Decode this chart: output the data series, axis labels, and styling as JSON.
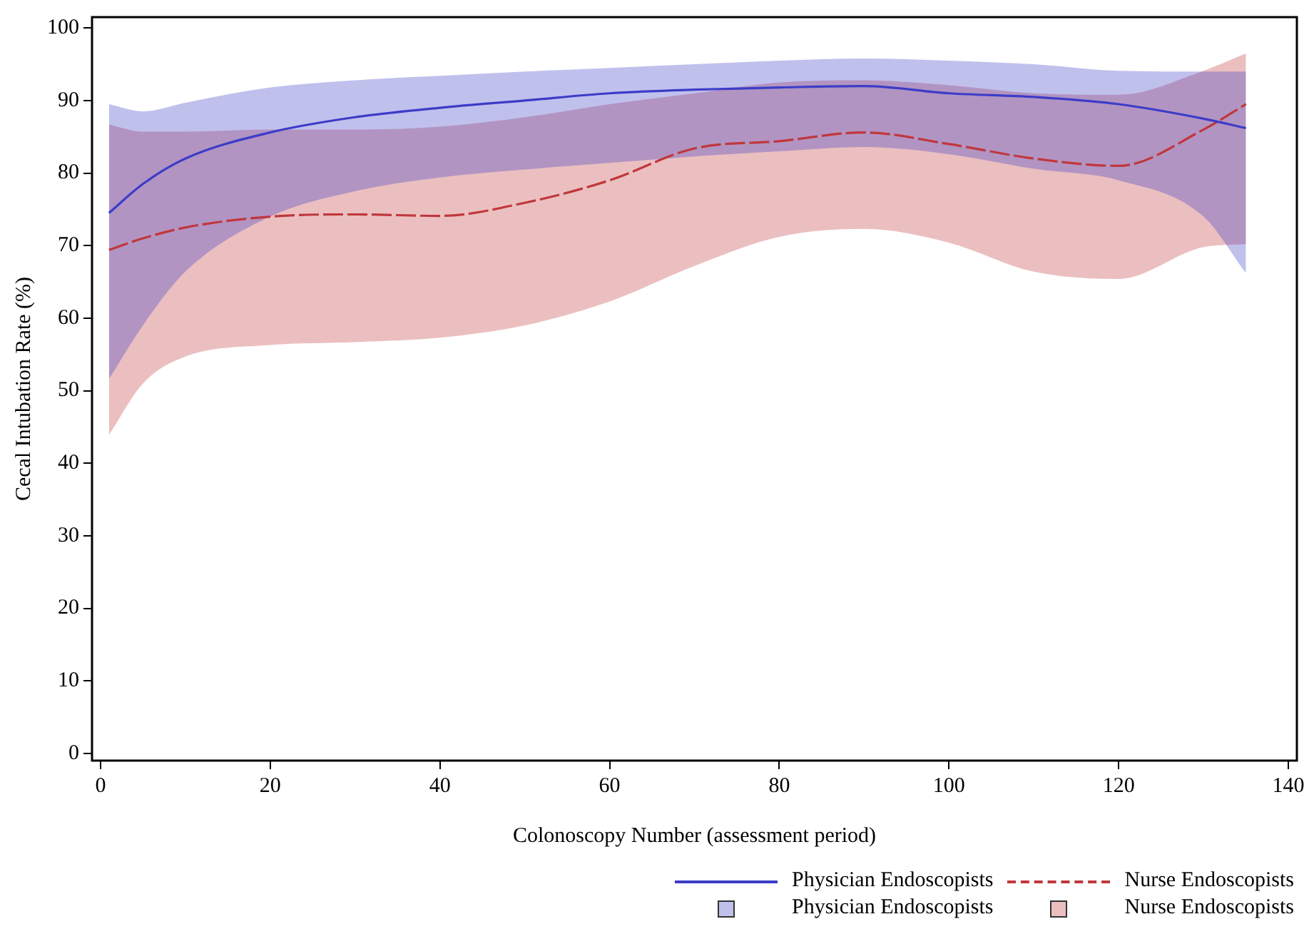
{
  "chart_data": {
    "type": "line",
    "xlabel": "Colonoscopy Number (assessment period)",
    "ylabel": "Cecal Intubation Rate (%)",
    "x": [
      1,
      5,
      10,
      20,
      30,
      40,
      50,
      60,
      70,
      80,
      90,
      100,
      110,
      120,
      130,
      135
    ],
    "series": [
      {
        "name": "Physician Endoscopists",
        "color": "#3c3cc8",
        "line_style": "solid",
        "values": [
          74.5,
          78.5,
          82,
          85.6,
          87.7,
          89,
          90,
          91,
          91.5,
          91.8,
          92,
          91,
          90.5,
          89.5,
          87.5,
          86.2
        ],
        "lower": [
          51.6,
          59,
          66.4,
          74,
          77.5,
          79.4,
          80.5,
          81.4,
          82.3,
          83,
          83.6,
          82.6,
          80.6,
          79,
          74,
          66.2
        ],
        "upper": [
          89.5,
          88.5,
          89.7,
          91.8,
          92.8,
          93.4,
          94,
          94.5,
          95,
          95.5,
          95.8,
          95.5,
          95,
          94.1,
          94,
          94
        ]
      },
      {
        "name": "Nurse Endoscopists",
        "color": "#c0373c",
        "line_style": "dashed",
        "values": [
          69.4,
          71,
          72.5,
          74,
          74.3,
          74.1,
          75.9,
          79,
          83.4,
          84.4,
          85.6,
          84,
          82,
          81,
          86,
          89.5
        ],
        "lower": [
          43.9,
          51,
          54.7,
          56.3,
          56.7,
          57.3,
          59,
          62.3,
          67.2,
          71.2,
          72.3,
          70.4,
          66.4,
          65.4,
          69.8,
          70.2
        ],
        "upper": [
          86.7,
          85.7,
          85.7,
          86,
          86,
          86.4,
          87.7,
          89.5,
          91,
          92.5,
          92.8,
          92.1,
          91,
          90.8,
          94.1,
          96.5
        ]
      }
    ],
    "xlim": [
      -1,
      141
    ],
    "ylim": [
      -1,
      101.5
    ],
    "xticks": [
      0,
      20,
      40,
      60,
      80,
      100,
      120,
      140
    ],
    "yticks": [
      0,
      10,
      20,
      30,
      40,
      50,
      60,
      70,
      80,
      90,
      100
    ],
    "grid": false,
    "legend": "bottom right",
    "marker": "none"
  }
}
